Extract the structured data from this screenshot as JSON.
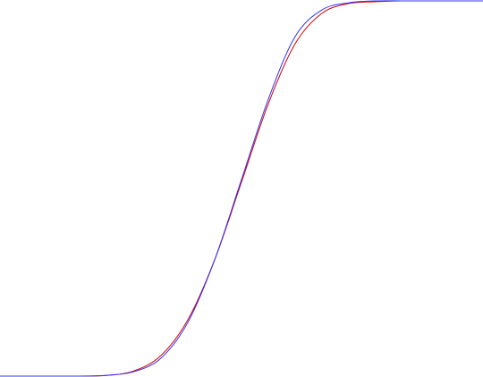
{
  "chart_data": {
    "type": "line",
    "x": [
      0,
      30,
      60,
      90,
      120,
      150,
      180,
      210,
      240,
      270,
      300,
      330,
      360,
      390,
      420,
      450,
      480,
      510,
      540
    ],
    "xlim": [
      0,
      540
    ],
    "ylim": [
      0,
      1
    ],
    "series": [
      {
        "color": "#d00000",
        "values": [
          0,
          0,
          0,
          0,
          0.002,
          0.014,
          0.055,
          0.15,
          0.31,
          0.517,
          0.726,
          0.886,
          0.967,
          0.993,
          0.998,
          1,
          1,
          1,
          1
        ]
      },
      {
        "color": "#3030ff",
        "values": [
          0,
          0,
          0,
          0,
          0.002,
          0.012,
          0.048,
          0.143,
          0.31,
          0.524,
          0.738,
          0.905,
          0.976,
          0.995,
          1,
          1,
          1,
          1,
          1
        ]
      }
    ]
  }
}
